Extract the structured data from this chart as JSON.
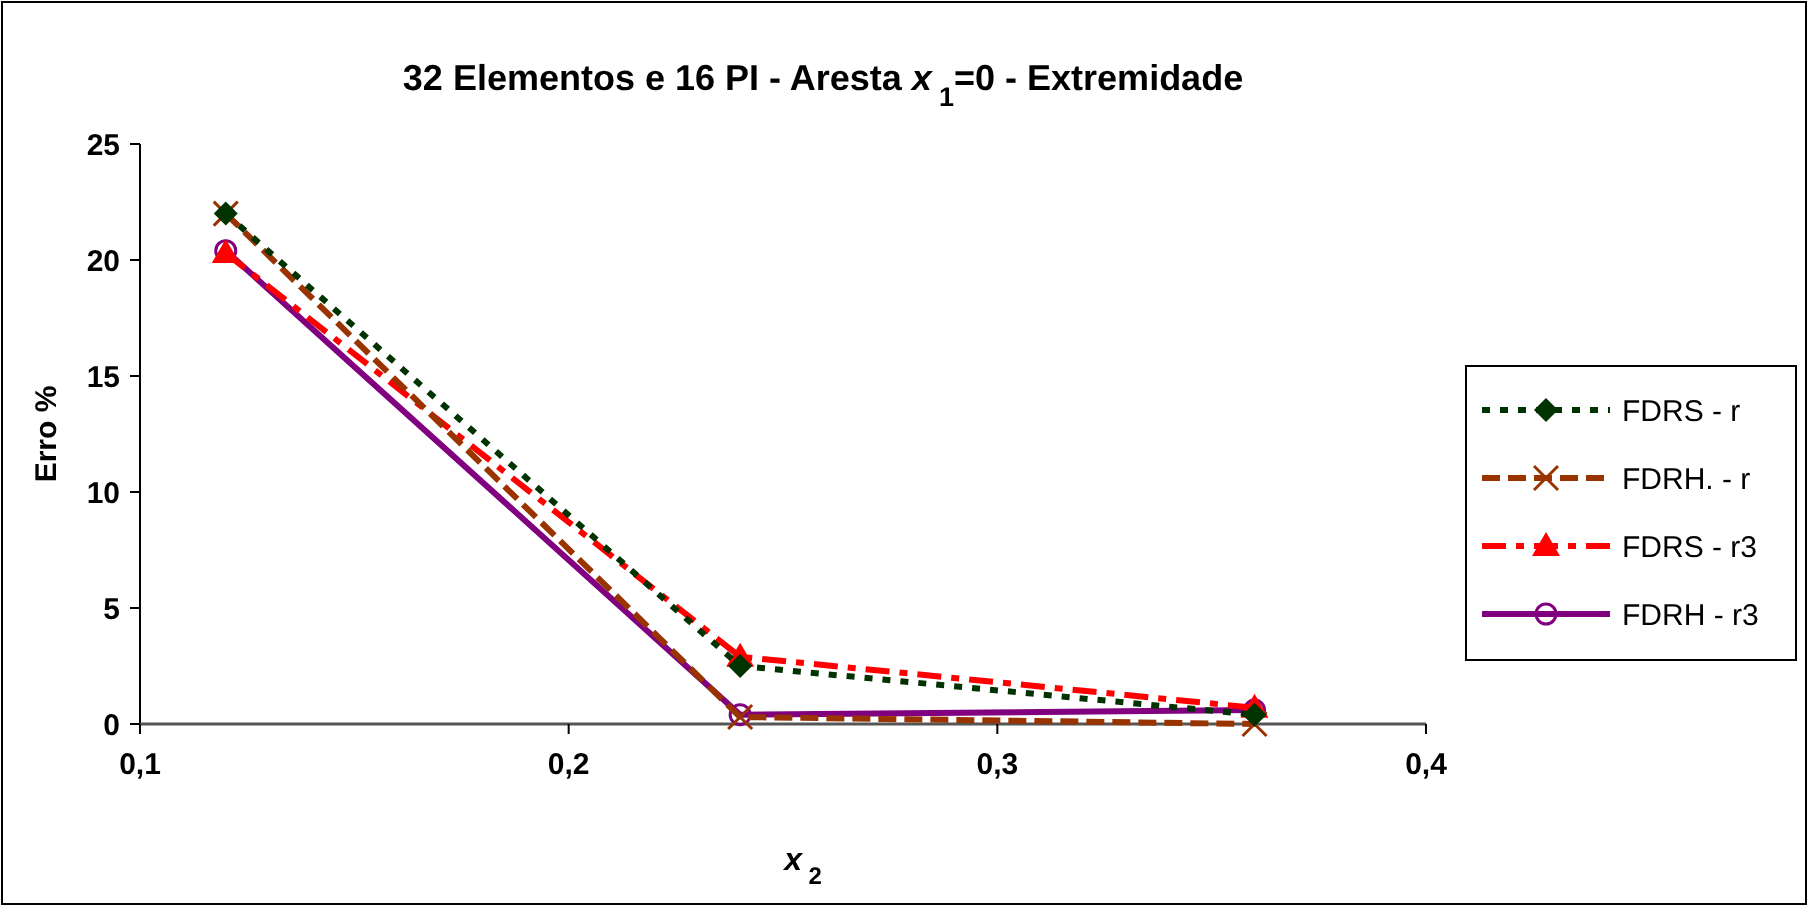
{
  "chart_data": {
    "type": "line",
    "title": "32 Elementos e 16 PI - Aresta x$_{1}$=0 - Extremidade",
    "xlabel": "x$_{2}$",
    "ylabel": "Erro %",
    "x": [
      0.12,
      0.24,
      0.36
    ],
    "xlim": [
      0.1,
      0.4
    ],
    "xticks": [
      {
        "value": 0.1,
        "label": "0,1"
      },
      {
        "value": 0.2,
        "label": "0,2"
      },
      {
        "value": 0.3,
        "label": "0,3"
      },
      {
        "value": 0.4,
        "label": "0,4"
      }
    ],
    "ylim": [
      0,
      25
    ],
    "yticks": [
      0,
      5,
      10,
      15,
      20,
      25
    ],
    "grid": false,
    "legend": "right",
    "series": [
      {
        "name": "FDRS - r",
        "color": "#003300",
        "marker": "diamond",
        "line_style": "dotted",
        "values": [
          22.0,
          2.5,
          0.4
        ]
      },
      {
        "name": "FDRH. - r",
        "color": "#993300",
        "marker": "cross",
        "line_style": "dashed",
        "values": [
          22.0,
          0.3,
          0.0
        ]
      },
      {
        "name": "FDRS - r3",
        "color": "#ff0000",
        "marker": "triangle",
        "line_style": "dashdot",
        "values": [
          20.3,
          2.9,
          0.7
        ]
      },
      {
        "name": "FDRH - r3",
        "color": "#800080",
        "marker": "circle",
        "line_style": "solid",
        "values": [
          20.4,
          0.4,
          0.6
        ]
      }
    ]
  }
}
